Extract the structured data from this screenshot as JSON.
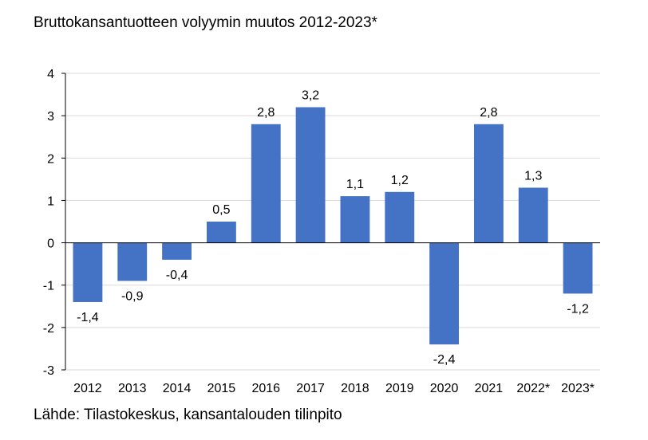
{
  "title": "Bruttokansantuotteen volyymin muutos 2012-2023*",
  "source": "Lähde: Tilastokeskus, kansantalouden tilinpito",
  "colors": {
    "bar": "#4472C4",
    "grid": "#d9d9d9",
    "axis": "#000000"
  },
  "chart_data": {
    "type": "bar",
    "title": "Bruttokansantuotteen volyymin muutos 2012-2023*",
    "categories": [
      "2012",
      "2013",
      "2014",
      "2015",
      "2016",
      "2017",
      "2018",
      "2019",
      "2020",
      "2021",
      "2022*",
      "2023*"
    ],
    "values": [
      -1.4,
      -0.9,
      -0.4,
      0.5,
      2.8,
      3.2,
      1.1,
      1.2,
      -2.4,
      2.8,
      1.3,
      -1.2
    ],
    "value_labels": [
      "-1,4",
      "-0,9",
      "-0,4",
      "0,5",
      "2,8",
      "3,2",
      "1,1",
      "1,2",
      "-2,4",
      "2,8",
      "1,3",
      "-1,2"
    ],
    "yticks": [
      "4",
      "3",
      "2",
      "1",
      "0",
      "-1",
      "-2",
      "-3"
    ],
    "ytick_values": [
      4,
      3,
      2,
      1,
      0,
      -1,
      -2,
      -3
    ],
    "ylim": [
      -3,
      4
    ],
    "xlabel": "",
    "ylabel": "",
    "grid": true,
    "legend": "none"
  }
}
